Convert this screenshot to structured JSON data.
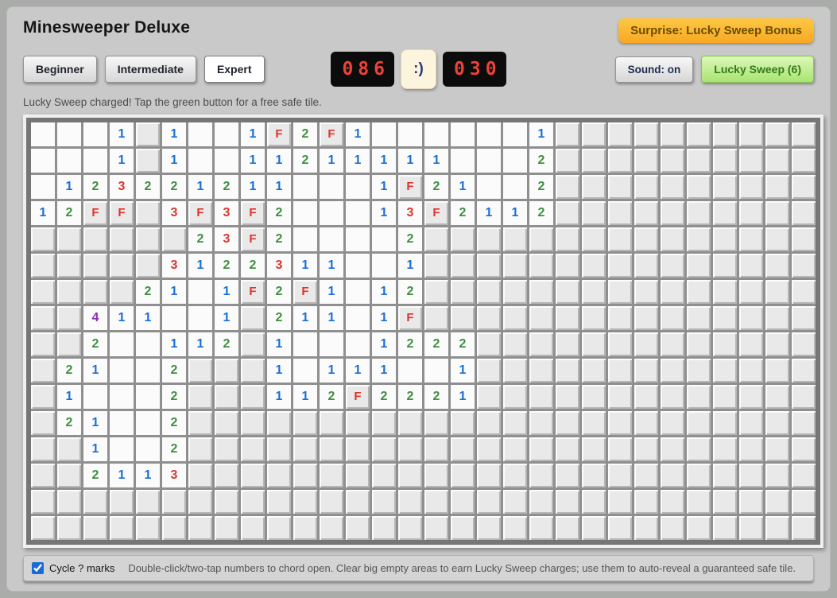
{
  "app": {
    "title": "Minesweeper Deluxe"
  },
  "banner": {
    "label": "Surprise: Lucky Sweep Bonus"
  },
  "difficulty": {
    "buttons": [
      {
        "label": "Beginner",
        "active": false
      },
      {
        "label": "Intermediate",
        "active": false
      },
      {
        "label": "Expert",
        "active": true
      }
    ]
  },
  "hud": {
    "mines_counter": "086",
    "face": ":)",
    "timer_counter": "030"
  },
  "controls": {
    "sound_label": "Sound: on",
    "lucky_sweep_label": "Lucky Sweep (6)"
  },
  "status": {
    "message": "Lucky Sweep charged! Tap the green button for a free safe tile."
  },
  "board": {
    "rows": 16,
    "cols": 30,
    "legend": {
      ".": "unrevealed",
      "0": "revealed-blank",
      "1-4": "revealed-number",
      "F": "flag"
    },
    "cells": [
      "0001.1001F2F10000001..........",
      "0001.100112111110002..........",
      "01232212110001F21002..........",
      "12FF.3F3F200013F2112..........",
      "......23F200002...............",
      ".....3122311001...............",
      "....2101F2F1012...............",
      "..411001.21101F...............",
      "..200112.10001222.............",
      ".21002...10111001.............",
      ".10002...112F2221.............",
      ".21002........................",
      "..1002........................",
      "..2113........................",
      "..............................",
      ".............................."
    ]
  },
  "footer": {
    "checkbox_label": "Cycle ? marks",
    "checkbox_checked": true,
    "hint": "Double-click/two-tap numbers to chord open. Clear big empty areas to earn Lucky Sweep charges; use them to auto-reveal a guaranteed safe tile."
  },
  "colors": {
    "num1": "#1a6fd6",
    "num2": "#3f8f3f",
    "num3": "#df342c",
    "num4": "#8d2fb5",
    "flag": "#df342c",
    "counter_digits": "#ee4238",
    "badge_bg": "#f9ad28",
    "lucky_green": "#35791b",
    "checkbox_accent": "#1b6ad6"
  }
}
